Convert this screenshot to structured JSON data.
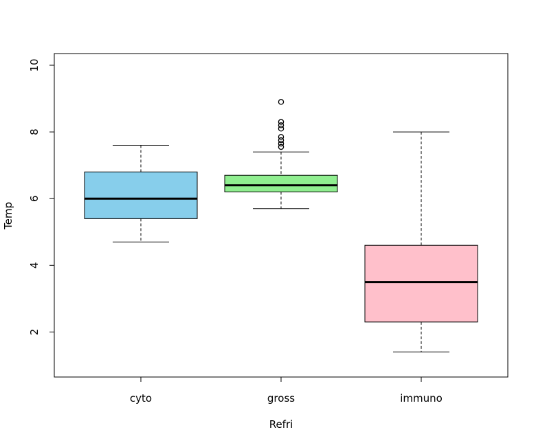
{
  "chart_data": {
    "type": "boxplot",
    "xlabel": "Refri",
    "ylabel": "Temp",
    "ylim": [
      0.65,
      10.35
    ],
    "yticks": [
      2,
      4,
      6,
      8,
      10
    ],
    "yticks_labels": [
      "2",
      "4",
      "6",
      "8",
      "10"
    ],
    "categories": [
      "cyto",
      "gross",
      "immuno"
    ],
    "boxes": [
      {
        "category": "cyto",
        "whisker_low": 4.7,
        "q1": 5.4,
        "median": 6.0,
        "q3": 6.8,
        "whisker_high": 7.6,
        "outliers": [],
        "color": "#87CEEB"
      },
      {
        "category": "gross",
        "whisker_low": 5.7,
        "q1": 6.2,
        "median": 6.4,
        "q3": 6.7,
        "whisker_high": 7.4,
        "outliers": [
          7.55,
          7.65,
          7.75,
          7.85,
          8.1,
          8.2,
          8.3,
          8.9
        ],
        "color": "#90EE90"
      },
      {
        "category": "immuno",
        "whisker_low": 1.4,
        "q1": 2.3,
        "median": 3.5,
        "q3": 4.6,
        "whisker_high": 8.0,
        "outliers": [],
        "color": "#FFC0CB"
      }
    ],
    "grid": false,
    "legend": "none"
  }
}
